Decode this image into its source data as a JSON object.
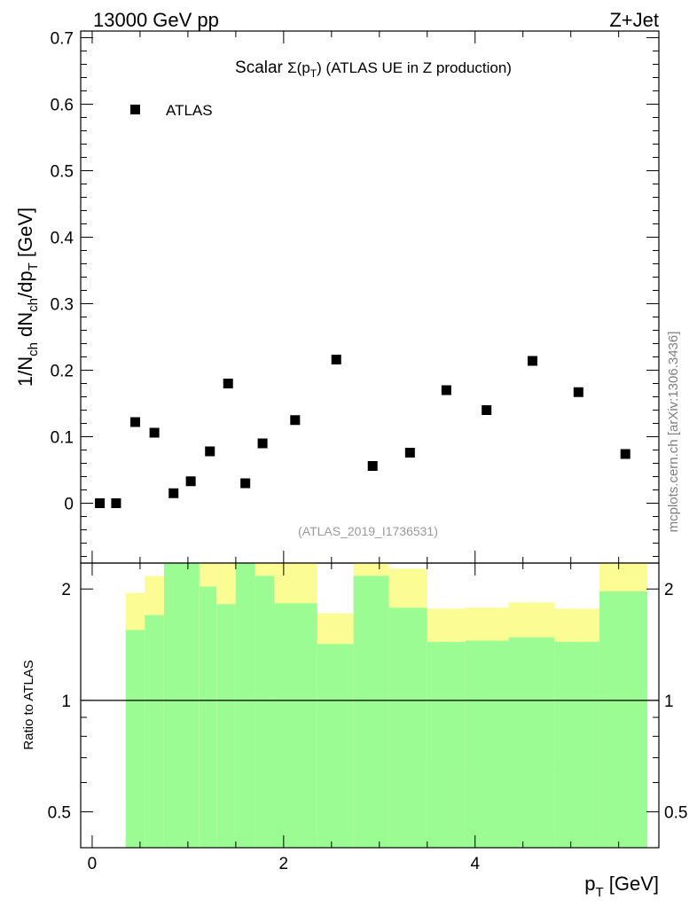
{
  "header": {
    "left": "13000 GeV pp",
    "right": "Z+Jet"
  },
  "side_label": "mcplots.cern.ch [arXiv:1306.3436]",
  "analysis_id": "(ATLAS_2019_I1736531)",
  "chart_data": [
    {
      "type": "scatter",
      "title_prefix": "Scalar ",
      "title_sigma": "Σ(p",
      "title_sub": "T",
      "title_close": ")",
      "title_suffix": " (ATLAS UE in Z production)",
      "ylabel": {
        "a": "1/N",
        "b": "ch",
        "c": " dN",
        "d": "ch",
        "e": "/dp",
        "f": "T",
        "g": " [GeV]"
      },
      "ylim": [
        -0.09,
        0.71
      ],
      "yticks": [
        "0",
        "0.1",
        "0.2",
        "0.3",
        "0.4",
        "0.5",
        "0.6",
        "0.7"
      ],
      "legend": [
        {
          "name": "ATLAS",
          "marker": "square"
        }
      ],
      "series": [
        {
          "name": "ATLAS",
          "x": [
            0.08,
            0.25,
            0.45,
            0.65,
            0.85,
            1.03,
            1.23,
            1.42,
            1.6,
            1.78,
            2.12,
            2.55,
            2.93,
            3.32,
            3.7,
            4.12,
            4.6,
            5.08,
            5.57
          ],
          "y": [
            0.0,
            0.0,
            0.122,
            0.106,
            0.015,
            0.033,
            0.078,
            0.18,
            0.03,
            0.09,
            0.125,
            0.216,
            0.056,
            0.076,
            0.17,
            0.14,
            0.214,
            0.167,
            0.074
          ]
        }
      ]
    },
    {
      "type": "area",
      "ylabel": "Ratio to ATLAS",
      "xlabel": {
        "a": "p",
        "b": "T",
        "c": " [GeV]"
      },
      "xlim": [
        -0.12,
        5.92
      ],
      "ylim_log": [
        0.4,
        2.35
      ],
      "xticks": [
        "0",
        "2",
        "4"
      ],
      "yticks": [
        "0.5",
        "1",
        "2"
      ],
      "reference_line": 1,
      "bands": [
        {
          "x0": 0.35,
          "x1": 0.55,
          "g_lo": 0.4,
          "g_hi": 1.55,
          "y_lo": 0.54,
          "y_hi": 1.95
        },
        {
          "x0": 0.55,
          "x1": 0.75,
          "g_lo": 0.4,
          "g_hi": 1.7,
          "y_lo": 0.4,
          "y_hi": 2.17
        },
        {
          "x0": 0.75,
          "x1": 1.12,
          "g_lo": 0.4,
          "g_hi": 2.4,
          "y_lo": 0.4,
          "y_hi": 2.4
        },
        {
          "x0": 1.12,
          "x1": 1.3,
          "g_lo": 0.4,
          "g_hi": 2.03,
          "y_lo": 0.4,
          "y_hi": 2.4
        },
        {
          "x0": 1.3,
          "x1": 1.5,
          "g_lo": 0.4,
          "g_hi": 1.82,
          "y_lo": 0.4,
          "y_hi": 2.4
        },
        {
          "x0": 1.5,
          "x1": 1.7,
          "g_lo": 0.4,
          "g_hi": 2.4,
          "y_lo": 0.4,
          "y_hi": 2.4
        },
        {
          "x0": 1.7,
          "x1": 1.9,
          "g_lo": 0.4,
          "g_hi": 2.17,
          "y_lo": 0.4,
          "y_hi": 2.4
        },
        {
          "x0": 1.9,
          "x1": 2.35,
          "g_lo": 0.4,
          "g_hi": 1.83,
          "y_lo": 0.4,
          "y_hi": 2.4
        },
        {
          "x0": 2.35,
          "x1": 2.73,
          "g_lo": 0.4,
          "g_hi": 1.42,
          "y_lo": 0.72,
          "y_hi": 1.72
        },
        {
          "x0": 2.73,
          "x1": 3.1,
          "g_lo": 0.4,
          "g_hi": 2.17,
          "y_lo": 0.4,
          "y_hi": 2.4
        },
        {
          "x0": 3.1,
          "x1": 3.5,
          "g_lo": 0.4,
          "g_hi": 1.78,
          "y_lo": 0.4,
          "y_hi": 2.27
        },
        {
          "x0": 3.5,
          "x1": 3.9,
          "g_lo": 0.4,
          "g_hi": 1.44,
          "y_lo": 0.69,
          "y_hi": 1.77
        },
        {
          "x0": 3.9,
          "x1": 4.35,
          "g_lo": 0.4,
          "g_hi": 1.45,
          "y_lo": 0.68,
          "y_hi": 1.78
        },
        {
          "x0": 4.35,
          "x1": 4.83,
          "g_lo": 0.4,
          "g_hi": 1.48,
          "y_lo": 0.64,
          "y_hi": 1.84
        },
        {
          "x0": 4.83,
          "x1": 5.3,
          "g_lo": 0.4,
          "g_hi": 1.44,
          "y_lo": 0.69,
          "y_hi": 1.77
        },
        {
          "x0": 5.3,
          "x1": 5.8,
          "g_lo": 0.4,
          "g_hi": 1.97,
          "y_lo": 0.4,
          "y_hi": 2.4
        }
      ],
      "colors": {
        "green": "#9cfc94",
        "yellow": "#fcfc94"
      }
    }
  ]
}
